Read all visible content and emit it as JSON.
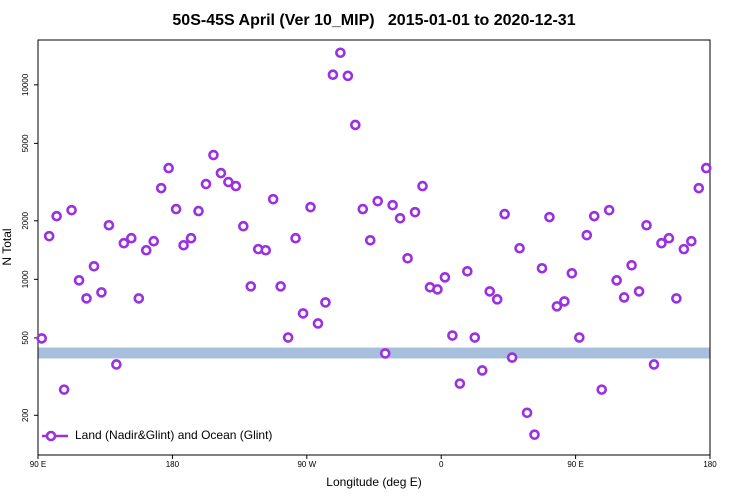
{
  "chart_data": {
    "type": "scatter",
    "title": "50S-45S April (Ver 10_MIP)   2015-01-01 to 2020-12-31",
    "x_label": "Longitude (deg E)",
    "y_label": "N Total",
    "log_y": true,
    "legend": "bottom-left",
    "band": {
      "range": [
        392,
        446
      ],
      "color": "#a7bfdc"
    },
    "xlim": [
      90,
      540
    ],
    "xticks": [
      {
        "value": 90,
        "label": "90 E"
      },
      {
        "value": 180,
        "label": "180"
      },
      {
        "value": 270,
        "label": "90 W"
      },
      {
        "value": 360,
        "label": "0"
      },
      {
        "value": 450,
        "label": "90 E"
      },
      {
        "value": 540,
        "label": "180"
      }
    ],
    "ylim": [
      125,
      17000
    ],
    "yticks": [
      200,
      500,
      1000,
      2000,
      5000,
      10000
    ],
    "x": [
      92.5,
      97.5,
      102.5,
      107.5,
      112.5,
      117.5,
      122.5,
      127.5,
      132.5,
      137.5,
      142.5,
      147.5,
      152.5,
      157.5,
      162.5,
      167.5,
      172.5,
      177.5,
      182.5,
      187.5,
      192.5,
      197.5,
      202.5,
      207.5,
      212.5,
      217.5,
      222.5,
      227.5,
      232.5,
      237.5,
      242.5,
      247.5,
      252.5,
      257.5,
      262.5,
      267.5,
      272.5,
      277.5,
      282.5,
      287.5,
      292.5,
      297.5,
      302.5,
      307.5,
      312.5,
      317.5,
      322.5,
      327.5,
      332.5,
      337.5,
      342.5,
      347.5,
      352.5,
      357.5,
      362.5,
      367.5,
      372.5,
      377.5,
      382.5,
      387.5,
      392.5,
      397.5,
      402.5,
      407.5,
      412.5,
      417.5,
      422.5,
      427.5,
      432.5,
      437.5,
      442.5,
      447.5,
      452.5,
      457.5,
      462.5,
      467.5,
      472.5,
      477.5,
      482.5,
      487.5,
      492.5,
      497.5,
      502.5,
      507.5,
      512.5,
      517.5,
      522.5,
      527.5,
      532.5,
      537.5
    ],
    "series": [
      {
        "name": "Land (Nadir&Glint) and Ocean (Glint)",
        "color": "#9b30e0",
        "values": [
          497,
          1667,
          2113,
          271,
          2268,
          988,
          798,
          1167,
          857,
          1897,
          365,
          1534,
          1627,
          798,
          1411,
          1570,
          2943,
          3731,
          2297,
          1497,
          1627,
          2243,
          3090,
          4355,
          3517,
          3163,
          3016,
          1875,
          920,
          1430,
          1411,
          2583,
          920,
          502,
          1627,
          668,
          2350,
          593,
          761,
          11270,
          14620,
          11120,
          6220,
          2297,
          1588,
          2523,
          416,
          2406,
          2060,
          1283,
          2215,
          3016,
          910,
          888,
          1024,
          514,
          291,
          1100,
          502,
          340,
          867,
          789,
          2165,
          396,
          1445,
          206,
          159,
          1140,
          2088,
          726,
          770,
          1074,
          502,
          1687,
          2113,
          271,
          2268,
          988,
          807,
          1181,
          867,
          1897,
          365,
          1534,
          1627,
          798,
          1430,
          1570,
          2943,
          3731
        ]
      }
    ]
  }
}
